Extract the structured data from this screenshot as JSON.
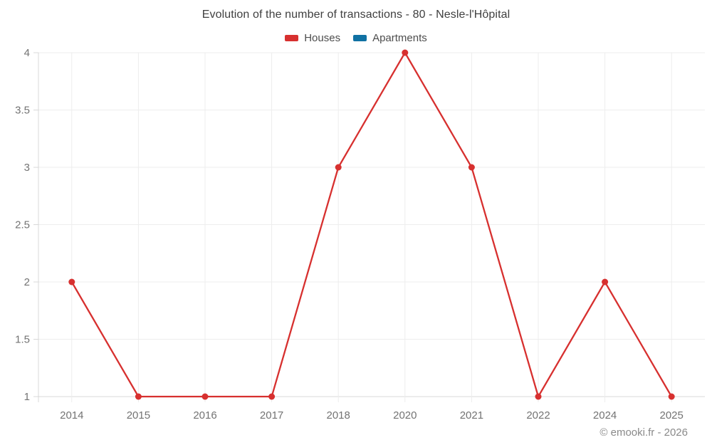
{
  "chart_data": {
    "type": "line",
    "title": "Evolution of the number of transactions - 80 - Nesle-l'Hôpital",
    "categories": [
      "2014",
      "2015",
      "2016",
      "2017",
      "2018",
      "2020",
      "2021",
      "2022",
      "2024",
      "2025"
    ],
    "series": [
      {
        "name": "Houses",
        "color": "#d7302f",
        "values": [
          2,
          1,
          1,
          1,
          3,
          4,
          3,
          1,
          2,
          1
        ]
      },
      {
        "name": "Apartments",
        "color": "#1071a3",
        "values": []
      }
    ],
    "xlabel": "",
    "ylabel": "",
    "ylim": [
      1,
      4
    ],
    "yticks": [
      1,
      1.5,
      2,
      2.5,
      3,
      3.5,
      4
    ],
    "ytick_labels": [
      "1",
      "1.5",
      "2",
      "2.5",
      "3",
      "3.5",
      "4"
    ],
    "grid": true,
    "legend_position": "top-center"
  },
  "footer": {
    "text": "© emooki.fr - 2026"
  }
}
